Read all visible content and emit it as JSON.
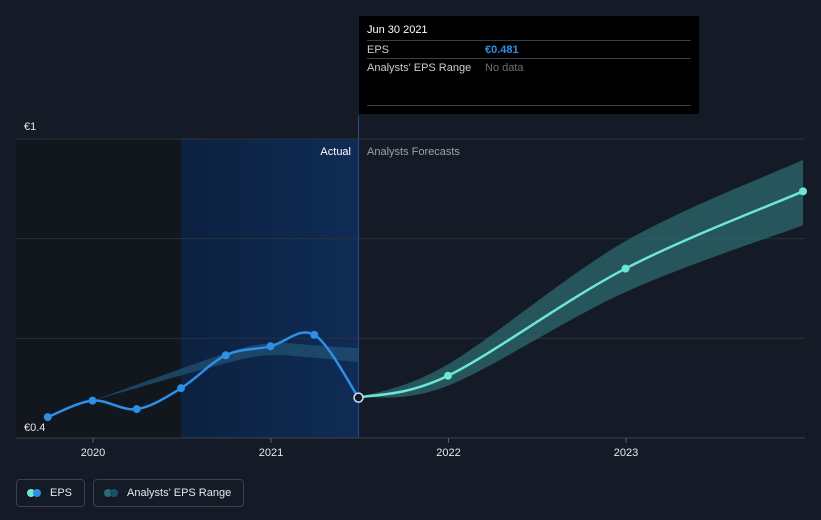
{
  "tooltip": {
    "date": "Jun 30 2021",
    "rows": [
      {
        "label": "EPS",
        "value": "€0.481"
      },
      {
        "label": "Analysts' EPS Range",
        "value": "No data"
      }
    ]
  },
  "sections": {
    "actual": "Actual",
    "forecast": "Analysts Forecasts"
  },
  "legend": {
    "eps": "EPS",
    "range": "Analysts' EPS Range"
  },
  "colors": {
    "background": "#151b26",
    "eps_actual": "#2d8fe6",
    "eps_forecast": "#6ee6d6",
    "range_band": "#2c6b6f",
    "actual_highlight": "#0e2848"
  },
  "chart_data": {
    "type": "line",
    "y_axis_labels": [
      "€1",
      "€0.4"
    ],
    "ylim": [
      0.4,
      1.0
    ],
    "x_ticks": [
      "2020",
      "2021",
      "2022",
      "2023"
    ],
    "series": [
      {
        "name": "EPS",
        "segment": "actual",
        "points": [
          {
            "x": "2019-09-30",
            "y": 0.442
          },
          {
            "x": "2019-12-31",
            "y": 0.475
          },
          {
            "x": "2020-03-31",
            "y": 0.458
          },
          {
            "x": "2020-06-30",
            "y": 0.5
          },
          {
            "x": "2020-09-30",
            "y": 0.566
          },
          {
            "x": "2020-12-31",
            "y": 0.584
          },
          {
            "x": "2021-03-31",
            "y": 0.607
          },
          {
            "x": "2021-06-30",
            "y": 0.481
          }
        ]
      },
      {
        "name": "EPS",
        "segment": "forecast",
        "points": [
          {
            "x": "2021-06-30",
            "y": 0.481
          },
          {
            "x": "2021-12-31",
            "y": 0.525
          },
          {
            "x": "2022-12-31",
            "y": 0.74
          },
          {
            "x": "2023-12-31",
            "y": 0.895
          }
        ]
      },
      {
        "name": "Analysts' EPS Range",
        "segment": "past",
        "upper": [
          {
            "x": "2019-12-31",
            "y": 0.475
          },
          {
            "x": "2020-09-30",
            "y": 0.57
          },
          {
            "x": "2020-12-31",
            "y": 0.59
          },
          {
            "x": "2021-03-31",
            "y": 0.586
          },
          {
            "x": "2021-06-30",
            "y": 0.58
          }
        ],
        "lower": [
          {
            "x": "2021-06-30",
            "y": 0.552
          },
          {
            "x": "2021-03-31",
            "y": 0.561
          },
          {
            "x": "2020-12-31",
            "y": 0.566
          },
          {
            "x": "2020-09-30",
            "y": 0.55
          },
          {
            "x": "2019-12-31",
            "y": 0.475
          }
        ]
      },
      {
        "name": "Analysts' EPS Range",
        "segment": "forecast",
        "upper": [
          {
            "x": "2021-06-30",
            "y": 0.481
          },
          {
            "x": "2021-12-31",
            "y": 0.548
          },
          {
            "x": "2022-12-31",
            "y": 0.795
          },
          {
            "x": "2023-12-31",
            "y": 0.958
          }
        ],
        "lower": [
          {
            "x": "2023-12-31",
            "y": 0.827
          },
          {
            "x": "2022-12-31",
            "y": 0.693
          },
          {
            "x": "2021-12-31",
            "y": 0.505
          },
          {
            "x": "2021-06-30",
            "y": 0.481
          }
        ]
      }
    ],
    "highlight_point": {
      "x": "2021-06-30",
      "y": 0.481
    },
    "actual_forecast_divider": "2021-06-30",
    "shaded_regions": [
      {
        "from": "2019-07-01",
        "to": "2020-06-30",
        "style": "darker"
      },
      {
        "from": "2020-06-30",
        "to": "2021-06-30",
        "style": "blue-highlight"
      }
    ],
    "grid": true,
    "legend_position": "bottom-left"
  }
}
